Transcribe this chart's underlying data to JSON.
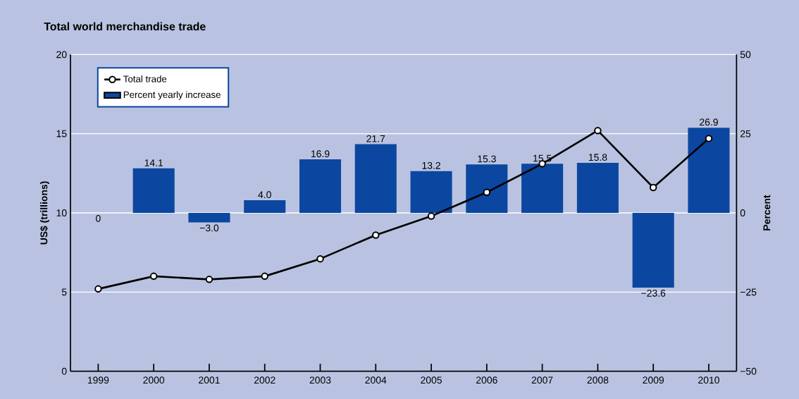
{
  "chart_data": {
    "type": "bar",
    "title": "Total world merchandise trade",
    "ylabel": "US$ (trillions)",
    "y2label": "Percent",
    "categories": [
      "1999",
      "2000",
      "2001",
      "2002",
      "2003",
      "2004",
      "2005",
      "2006",
      "2007",
      "2008",
      "2009",
      "2010"
    ],
    "series": [
      {
        "name": "Total trade",
        "type": "line",
        "axis": "y",
        "color": "#000000",
        "values": [
          5.2,
          6.0,
          5.8,
          6.0,
          7.1,
          8.6,
          9.8,
          11.3,
          13.1,
          15.2,
          11.6,
          14.7
        ]
      },
      {
        "name": "Percent yearly increase",
        "axis": "y2",
        "color": "#0b47a0",
        "values": [
          0,
          14.1,
          -3.0,
          4.0,
          16.9,
          21.7,
          13.2,
          15.3,
          15.5,
          15.8,
          -23.6,
          26.9
        ],
        "value_labels": [
          "0",
          "14.1",
          "−3.0",
          "4.0",
          "16.9",
          "21.7",
          "13.2",
          "15.3",
          "15.5",
          "15.8",
          "−23.6",
          "26.9"
        ]
      }
    ],
    "ylim": [
      0,
      20
    ],
    "yticks": [
      0,
      5,
      10,
      15,
      20
    ],
    "y2lim": [
      -50,
      50
    ],
    "y2ticks": [
      {
        "value": -50,
        "label": "−50"
      },
      {
        "value": -25,
        "label": "−25"
      },
      0,
      25,
      50
    ],
    "grid": "y",
    "legend": "top left",
    "marker": "circle"
  }
}
